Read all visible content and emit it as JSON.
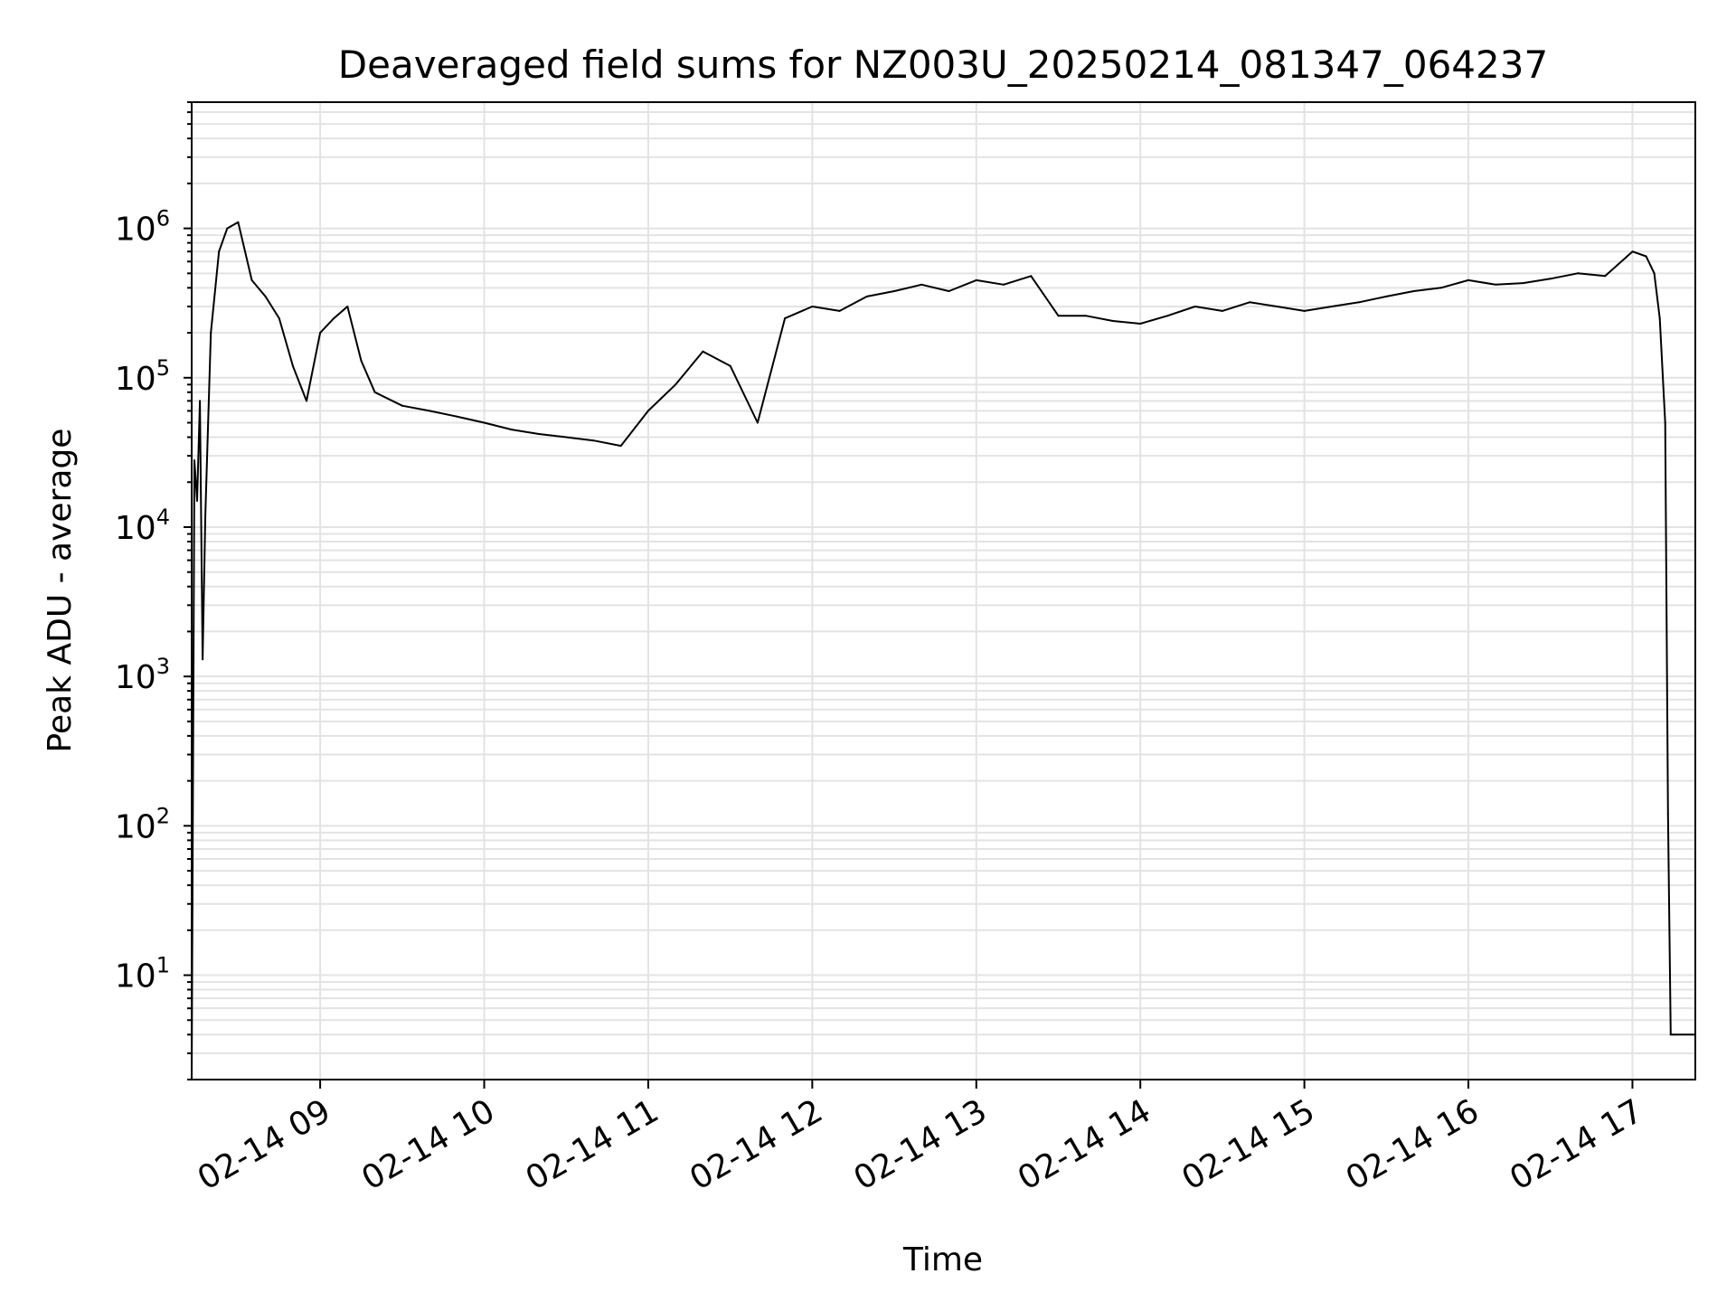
{
  "chart_data": {
    "type": "line",
    "title": "Deaveraged field sums for NZ003U_20250214_081347_064237",
    "xlabel": "Time",
    "ylabel": "Peak ADU - average",
    "yscale": "log",
    "grid": true,
    "x_tick_labels": [
      "02-14 09",
      "02-14 10",
      "02-14 11",
      "02-14 12",
      "02-14 13",
      "02-14 14",
      "02-14 15",
      "02-14 16",
      "02-14 17"
    ],
    "y_tick_labels": [
      {
        "base": "10",
        "exp": "1"
      },
      {
        "base": "10",
        "exp": "2"
      },
      {
        "base": "10",
        "exp": "3"
      },
      {
        "base": "10",
        "exp": "4"
      },
      {
        "base": "10",
        "exp": "5"
      },
      {
        "base": "10",
        "exp": "6"
      }
    ],
    "xlim": [
      "2025-02-14 08:13",
      "2025-02-14 17:23"
    ],
    "ylim": [
      2,
      7000000
    ],
    "series": [
      {
        "color": "#000000",
        "x": [
          "2025-02-14 08:13",
          "2025-02-14 08:14",
          "2025-02-14 08:15",
          "2025-02-14 08:16",
          "2025-02-14 08:17",
          "2025-02-14 08:18",
          "2025-02-14 08:20",
          "2025-02-14 08:23",
          "2025-02-14 08:26",
          "2025-02-14 08:30",
          "2025-02-14 08:35",
          "2025-02-14 08:40",
          "2025-02-14 08:45",
          "2025-02-14 08:50",
          "2025-02-14 08:55",
          "2025-02-14 09:00",
          "2025-02-14 09:05",
          "2025-02-14 09:10",
          "2025-02-14 09:15",
          "2025-02-14 09:20",
          "2025-02-14 09:30",
          "2025-02-14 09:40",
          "2025-02-14 09:50",
          "2025-02-14 10:00",
          "2025-02-14 10:10",
          "2025-02-14 10:20",
          "2025-02-14 10:30",
          "2025-02-14 10:40",
          "2025-02-14 10:50",
          "2025-02-14 11:00",
          "2025-02-14 11:10",
          "2025-02-14 11:20",
          "2025-02-14 11:30",
          "2025-02-14 11:40",
          "2025-02-14 11:50",
          "2025-02-14 12:00",
          "2025-02-14 12:10",
          "2025-02-14 12:20",
          "2025-02-14 12:30",
          "2025-02-14 12:40",
          "2025-02-14 12:50",
          "2025-02-14 13:00",
          "2025-02-14 13:10",
          "2025-02-14 13:20",
          "2025-02-14 13:30",
          "2025-02-14 13:40",
          "2025-02-14 13:50",
          "2025-02-14 14:00",
          "2025-02-14 14:10",
          "2025-02-14 14:20",
          "2025-02-14 14:30",
          "2025-02-14 14:40",
          "2025-02-14 14:50",
          "2025-02-14 15:00",
          "2025-02-14 15:10",
          "2025-02-14 15:20",
          "2025-02-14 15:30",
          "2025-02-14 15:40",
          "2025-02-14 15:50",
          "2025-02-14 16:00",
          "2025-02-14 16:10",
          "2025-02-14 16:20",
          "2025-02-14 16:30",
          "2025-02-14 16:40",
          "2025-02-14 16:50",
          "2025-02-14 17:00",
          "2025-02-14 17:05",
          "2025-02-14 17:08",
          "2025-02-14 17:10",
          "2025-02-14 17:12",
          "2025-02-14 17:13",
          "2025-02-14 17:14",
          "2025-02-14 17:15",
          "2025-02-14 17:23"
        ],
        "y": [
          2,
          28000,
          15000,
          70000,
          1300,
          12000,
          200000,
          700000,
          1000000,
          1100000,
          450000,
          350000,
          250000,
          120000,
          70000,
          200000,
          250000,
          300000,
          130000,
          80000,
          65000,
          60000,
          55000,
          50000,
          45000,
          42000,
          40000,
          38000,
          35000,
          60000,
          90000,
          150000,
          120000,
          50000,
          250000,
          300000,
          280000,
          350000,
          380000,
          420000,
          380000,
          450000,
          420000,
          480000,
          260000,
          260000,
          240000,
          230000,
          260000,
          300000,
          280000,
          320000,
          300000,
          280000,
          300000,
          320000,
          350000,
          380000,
          400000,
          450000,
          420000,
          430000,
          460000,
          500000,
          480000,
          700000,
          650000,
          500000,
          250000,
          50000,
          120,
          4,
          4,
          4
        ]
      }
    ]
  }
}
